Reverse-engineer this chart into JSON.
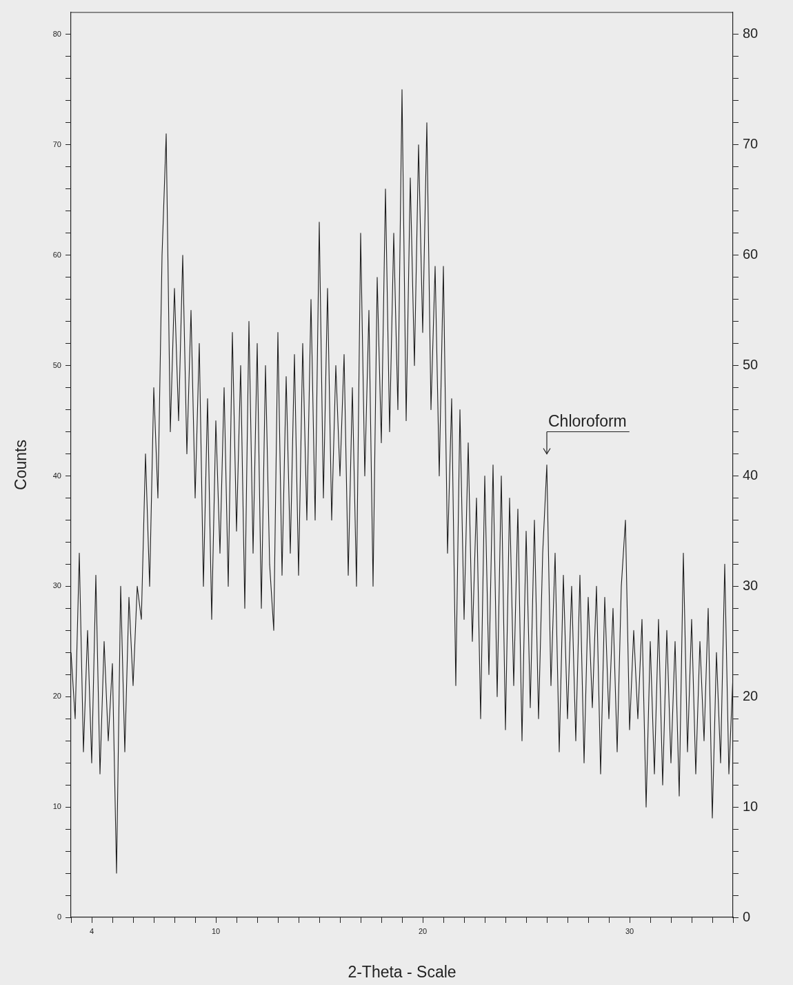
{
  "chart_data": {
    "type": "line",
    "xlabel": "2-Theta - Scale",
    "ylabel": "Counts",
    "xlim": [
      3,
      35
    ],
    "xticks": [
      {
        "value": 3,
        "label": null
      },
      4,
      {
        "value": 5,
        "label": null
      },
      {
        "value": 6,
        "label": null
      },
      {
        "value": 7,
        "label": null
      },
      {
        "value": 8,
        "label": null
      },
      {
        "value": 9,
        "label": null
      },
      10,
      {
        "value": 11,
        "label": null
      },
      {
        "value": 12,
        "label": null
      },
      {
        "value": 13,
        "label": null
      },
      {
        "value": 14,
        "label": null
      },
      {
        "value": 15,
        "label": null
      },
      {
        "value": 16,
        "label": null
      },
      {
        "value": 17,
        "label": null
      },
      {
        "value": 18,
        "label": null
      },
      {
        "value": 19,
        "label": null
      },
      20,
      {
        "value": 21,
        "label": null
      },
      {
        "value": 22,
        "label": null
      },
      {
        "value": 23,
        "label": null
      },
      {
        "value": 24,
        "label": null
      },
      {
        "value": 25,
        "label": null
      },
      {
        "value": 26,
        "label": null
      },
      {
        "value": 27,
        "label": null
      },
      {
        "value": 28,
        "label": null
      },
      {
        "value": 29,
        "label": null
      },
      30,
      {
        "value": 31,
        "label": null
      },
      {
        "value": 32,
        "label": null
      },
      {
        "value": 33,
        "label": null
      },
      {
        "value": 34,
        "label": null
      },
      {
        "value": 35,
        "label": null
      }
    ],
    "ylim": [
      0,
      82
    ],
    "yticks": [
      0,
      {
        "value": 2,
        "label": null
      },
      {
        "value": 4,
        "label": null
      },
      {
        "value": 6,
        "label": null
      },
      {
        "value": 8,
        "label": null
      },
      10,
      {
        "value": 12,
        "label": null
      },
      {
        "value": 14,
        "label": null
      },
      {
        "value": 16,
        "label": null
      },
      {
        "value": 18,
        "label": null
      },
      20,
      {
        "value": 22,
        "label": null
      },
      {
        "value": 24,
        "label": null
      },
      {
        "value": 26,
        "label": null
      },
      {
        "value": 28,
        "label": null
      },
      30,
      {
        "value": 32,
        "label": null
      },
      {
        "value": 34,
        "label": null
      },
      {
        "value": 36,
        "label": null
      },
      {
        "value": 38,
        "label": null
      },
      40,
      {
        "value": 42,
        "label": null
      },
      {
        "value": 44,
        "label": null
      },
      {
        "value": 46,
        "label": null
      },
      {
        "value": 48,
        "label": null
      },
      50,
      {
        "value": 52,
        "label": null
      },
      {
        "value": 54,
        "label": null
      },
      {
        "value": 56,
        "label": null
      },
      {
        "value": 58,
        "label": null
      },
      60,
      {
        "value": 62,
        "label": null
      },
      {
        "value": 64,
        "label": null
      },
      {
        "value": 66,
        "label": null
      },
      {
        "value": 68,
        "label": null
      },
      70,
      {
        "value": 72,
        "label": null
      },
      {
        "value": 74,
        "label": null
      },
      {
        "value": 76,
        "label": null
      },
      {
        "value": 78,
        "label": null
      },
      80
    ],
    "y2lim": [
      0,
      82
    ],
    "y2ticks": [
      0,
      {
        "value": 2,
        "label": null
      },
      {
        "value": 4,
        "label": null
      },
      {
        "value": 6,
        "label": null
      },
      {
        "value": 8,
        "label": null
      },
      10,
      {
        "value": 12,
        "label": null
      },
      {
        "value": 14,
        "label": null
      },
      {
        "value": 16,
        "label": null
      },
      {
        "value": 18,
        "label": null
      },
      20,
      {
        "value": 22,
        "label": null
      },
      {
        "value": 24,
        "label": null
      },
      {
        "value": 26,
        "label": null
      },
      {
        "value": 28,
        "label": null
      },
      30,
      {
        "value": 32,
        "label": null
      },
      {
        "value": 34,
        "label": null
      },
      {
        "value": 36,
        "label": null
      },
      {
        "value": 38,
        "label": null
      },
      40,
      {
        "value": 42,
        "label": null
      },
      {
        "value": 44,
        "label": null
      },
      {
        "value": 46,
        "label": null
      },
      {
        "value": 48,
        "label": null
      },
      50,
      {
        "value": 52,
        "label": null
      },
      {
        "value": 54,
        "label": null
      },
      {
        "value": 56,
        "label": null
      },
      {
        "value": 58,
        "label": null
      },
      60,
      {
        "value": 62,
        "label": null
      },
      {
        "value": 64,
        "label": null
      },
      {
        "value": 66,
        "label": null
      },
      {
        "value": 68,
        "label": null
      },
      70,
      {
        "value": 72,
        "label": null
      },
      {
        "value": 74,
        "label": null
      },
      {
        "value": 76,
        "label": null
      },
      {
        "value": 78,
        "label": null
      },
      80
    ],
    "grid": false,
    "annotations": [
      {
        "text": "Chloroform",
        "x": 26,
        "y": 41
      }
    ],
    "series": [
      {
        "color": "#1e1e1e",
        "x": [
          3.0,
          3.2,
          3.4,
          3.6,
          3.8,
          4.0,
          4.2,
          4.4,
          4.6,
          4.8,
          5.0,
          5.2,
          5.4,
          5.6,
          5.8,
          6.0,
          6.2,
          6.4,
          6.6,
          6.8,
          7.0,
          7.2,
          7.4,
          7.6,
          7.8,
          8.0,
          8.2,
          8.4,
          8.6,
          8.8,
          9.0,
          9.2,
          9.4,
          9.6,
          9.8,
          10.0,
          10.2,
          10.4,
          10.6,
          10.8,
          11.0,
          11.2,
          11.4,
          11.6,
          11.8,
          12.0,
          12.2,
          12.4,
          12.6,
          12.8,
          13.0,
          13.2,
          13.4,
          13.6,
          13.8,
          14.0,
          14.2,
          14.4,
          14.6,
          14.8,
          15.0,
          15.2,
          15.4,
          15.6,
          15.8,
          16.0,
          16.2,
          16.4,
          16.6,
          16.8,
          17.0,
          17.2,
          17.4,
          17.6,
          17.8,
          18.0,
          18.2,
          18.4,
          18.6,
          18.8,
          19.0,
          19.2,
          19.4,
          19.6,
          19.8,
          20.0,
          20.2,
          20.4,
          20.6,
          20.8,
          21.0,
          21.2,
          21.4,
          21.6,
          21.8,
          22.0,
          22.2,
          22.4,
          22.6,
          22.8,
          23.0,
          23.2,
          23.4,
          23.6,
          23.8,
          24.0,
          24.2,
          24.4,
          24.6,
          24.8,
          25.0,
          25.2,
          25.4,
          25.6,
          25.8,
          26.0,
          26.2,
          26.4,
          26.6,
          26.8,
          27.0,
          27.2,
          27.4,
          27.6,
          27.8,
          28.0,
          28.2,
          28.4,
          28.6,
          28.8,
          29.0,
          29.2,
          29.4,
          29.6,
          29.8,
          30.0,
          30.2,
          30.4,
          30.6,
          30.8,
          31.0,
          31.2,
          31.4,
          31.6,
          31.8,
          32.0,
          32.2,
          32.4,
          32.6,
          32.8,
          33.0,
          33.2,
          33.4,
          33.6,
          33.8,
          34.0,
          34.2,
          34.4,
          34.6,
          34.8,
          35.0
        ],
        "values": [
          24,
          18,
          33,
          15,
          26,
          14,
          31,
          13,
          25,
          16,
          23,
          4,
          30,
          15,
          29,
          21,
          30,
          27,
          42,
          30,
          48,
          38,
          60,
          71,
          44,
          57,
          45,
          60,
          42,
          55,
          38,
          52,
          30,
          47,
          27,
          45,
          33,
          48,
          30,
          53,
          35,
          50,
          28,
          54,
          33,
          52,
          28,
          50,
          32,
          26,
          53,
          31,
          49,
          33,
          51,
          31,
          52,
          36,
          56,
          36,
          63,
          38,
          57,
          36,
          50,
          40,
          51,
          31,
          48,
          30,
          62,
          40,
          55,
          30,
          58,
          43,
          66,
          44,
          62,
          46,
          75,
          45,
          67,
          50,
          70,
          53,
          72,
          46,
          59,
          40,
          59,
          33,
          47,
          21,
          46,
          27,
          43,
          25,
          38,
          18,
          40,
          22,
          41,
          20,
          40,
          17,
          38,
          21,
          37,
          16,
          35,
          19,
          36,
          18,
          33,
          41,
          21,
          33,
          15,
          31,
          18,
          30,
          16,
          31,
          14,
          29,
          19,
          30,
          13,
          29,
          18,
          28,
          15,
          30,
          36,
          17,
          26,
          18,
          27,
          10,
          25,
          13,
          27,
          12,
          26,
          14,
          25,
          11,
          33,
          15,
          27,
          13,
          25,
          16,
          28,
          9,
          24,
          14,
          32,
          13,
          22
        ]
      }
    ]
  }
}
